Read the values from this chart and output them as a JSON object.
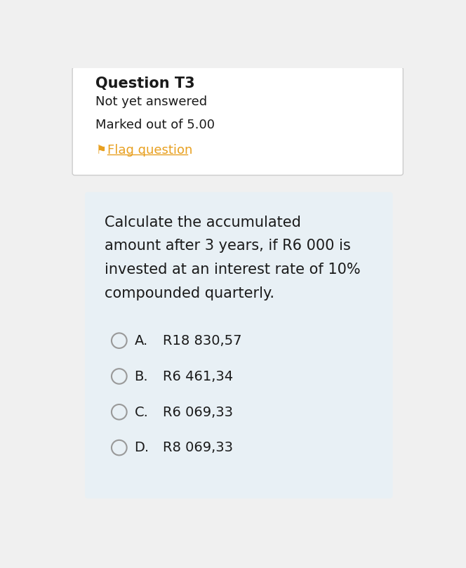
{
  "page_bg": "#f0f0f0",
  "top_box_bg": "#ffffff",
  "top_box_border": "#cccccc",
  "question_title": "Question T3",
  "not_answered": "Not yet answered",
  "marked_out": "Marked out of 5.00",
  "flag_text": "Flag question",
  "flag_color": "#e8a020",
  "bottom_box_bg": "#e8f0f5",
  "question_text_lines": [
    "Calculate the accumulated",
    "amount after 3 years, if R6 000 is",
    "invested at an interest rate of 10%",
    "compounded quarterly."
  ],
  "options": [
    {
      "label": "A.",
      "text": "R18 830,57"
    },
    {
      "label": "B.",
      "text": "R6 461,34"
    },
    {
      "label": "C.",
      "text": "R6 069,33"
    },
    {
      "label": "D.",
      "text": "R8 069,33"
    }
  ],
  "text_color": "#1a1a1a",
  "radio_edge_color": "#999999",
  "radio_fill": "#e8f0f5",
  "font_size_title": 15,
  "font_size_body": 13,
  "font_size_question": 15,
  "font_size_options": 14
}
